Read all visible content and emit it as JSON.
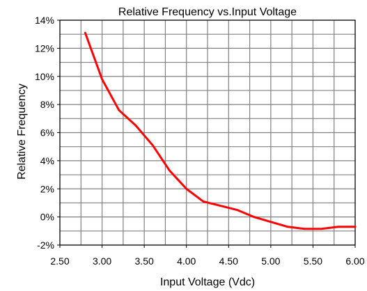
{
  "chart_data": {
    "type": "line",
    "title": "Relative Frequency vs.Input Voltage",
    "xlabel": "Input Voltage (Vdc)",
    "ylabel": "Relative Frequency",
    "xlim": [
      2.5,
      6.0
    ],
    "ylim": [
      -2,
      14
    ],
    "x_ticks": [
      "2.50",
      "3.00",
      "3.50",
      "4.00",
      "4.50",
      "5.00",
      "5.50",
      "6.00"
    ],
    "y_ticks": [
      "-2%",
      "0%",
      "2%",
      "4%",
      "6%",
      "8%",
      "10%",
      "12%",
      "14%"
    ],
    "grid": true,
    "series": [
      {
        "color": "#ff0000",
        "x": [
          2.8,
          3.0,
          3.2,
          3.4,
          3.6,
          3.8,
          4.0,
          4.2,
          4.4,
          4.6,
          4.8,
          5.0,
          5.2,
          5.4,
          5.6,
          5.8,
          6.0
        ],
        "y": [
          13.1,
          9.8,
          7.6,
          6.5,
          5.1,
          3.3,
          2.0,
          1.1,
          0.8,
          0.5,
          0.0,
          -0.35,
          -0.7,
          -0.85,
          -0.85,
          -0.7,
          -0.7
        ]
      }
    ]
  }
}
